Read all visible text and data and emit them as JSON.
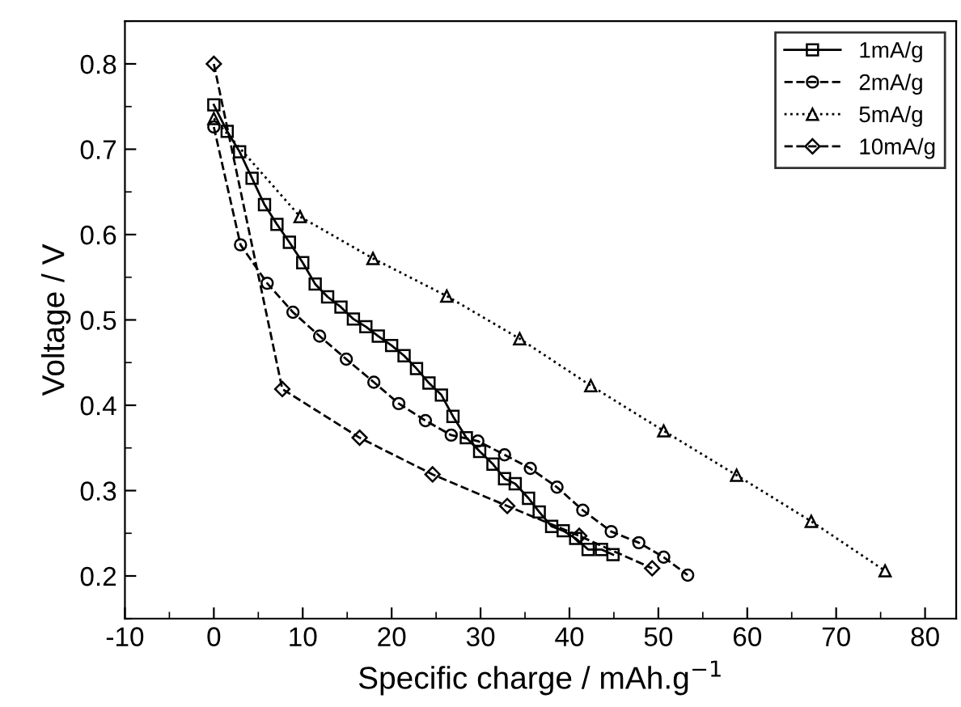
{
  "chart_data": {
    "type": "line",
    "xlabel": "Specific charge / mAh.g$^{−1}$",
    "ylabel": "Voltage / V",
    "xlim": [
      -10,
      83.5
    ],
    "ylim": [
      0.15,
      0.85
    ],
    "xticks": [
      -10,
      0,
      10,
      20,
      30,
      40,
      50,
      60,
      70,
      80
    ],
    "yticks": [
      0.2,
      0.3,
      0.4,
      0.5,
      0.6,
      0.7,
      0.8
    ],
    "grid": false,
    "legend": "top right",
    "series": [
      {
        "name": "1mA/g",
        "color": "#000000",
        "marker": "square",
        "line_style": "solid",
        "x": [
          0,
          1.5,
          2.9,
          4.3,
          5.7,
          7.1,
          8.5,
          10,
          11.4,
          12.8,
          14.3,
          15.7,
          17.1,
          18.5,
          20,
          21.4,
          22.8,
          24.2,
          25.6,
          26.9,
          28.4,
          29.9,
          31.4,
          32.7,
          33.9,
          35.4,
          36.6,
          38,
          39.3,
          40.7,
          42.1,
          43.6,
          44.9
        ],
        "values": [
          0.752,
          0.721,
          0.697,
          0.666,
          0.635,
          0.612,
          0.591,
          0.567,
          0.542,
          0.527,
          0.515,
          0.501,
          0.492,
          0.481,
          0.47,
          0.458,
          0.443,
          0.426,
          0.412,
          0.387,
          0.362,
          0.346,
          0.331,
          0.314,
          0.308,
          0.291,
          0.275,
          0.258,
          0.253,
          0.244,
          0.231,
          0.231,
          0.225
        ]
      },
      {
        "name": "2mA/g",
        "color": "#000000",
        "marker": "circle",
        "line_style": "dashed",
        "x": [
          0,
          3,
          6,
          8.9,
          11.9,
          14.9,
          18,
          20.8,
          23.8,
          26.7,
          29.7,
          32.7,
          35.6,
          38.6,
          41.5,
          44.7,
          47.8,
          50.6,
          53.3
        ],
        "values": [
          0.726,
          0.588,
          0.543,
          0.509,
          0.481,
          0.454,
          0.427,
          0.402,
          0.382,
          0.365,
          0.358,
          0.342,
          0.326,
          0.304,
          0.277,
          0.252,
          0.239,
          0.222,
          0.201
        ]
      },
      {
        "name": "5mA/g",
        "color": "#000000",
        "marker": "triangle",
        "line_style": "dotted",
        "x": [
          0,
          9.7,
          17.9,
          26.2,
          34.4,
          42.4,
          50.6,
          58.8,
          67.2,
          75.5
        ],
        "values": [
          0.736,
          0.621,
          0.572,
          0.528,
          0.478,
          0.423,
          0.37,
          0.318,
          0.264,
          0.206
        ]
      },
      {
        "name": "10mA/g",
        "color": "#000000",
        "marker": "diamond",
        "line_style": "dashed",
        "x": [
          0,
          7.7,
          16.4,
          24.6,
          33,
          41.1,
          49.3
        ],
        "values": [
          0.8,
          0.419,
          0.362,
          0.319,
          0.282,
          0.247,
          0.209
        ]
      }
    ]
  }
}
